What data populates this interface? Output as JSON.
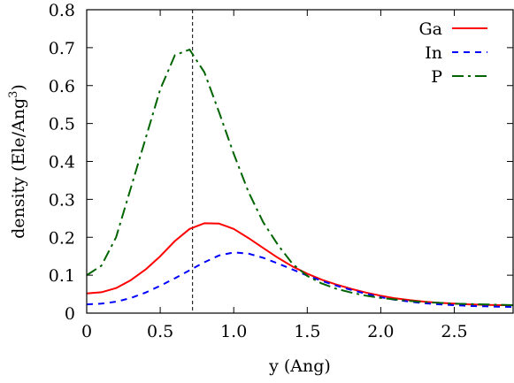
{
  "chart_data": {
    "type": "line",
    "xlabel": "y (Ang)",
    "ylabel_main": "density (Ele/Ang",
    "ylabel_sup": "3",
    "ylabel_close": ")",
    "xlim": [
      0,
      2.9
    ],
    "ylim": [
      0,
      0.8
    ],
    "xticks": [
      0,
      0.5,
      1.0,
      1.5,
      2.0,
      2.5
    ],
    "xtick_labels": [
      "0",
      "0.5",
      "1.0",
      "1.5",
      "2.0",
      "2.5"
    ],
    "yticks": [
      0,
      0.1,
      0.2,
      0.3,
      0.4,
      0.5,
      0.6,
      0.7,
      0.8
    ],
    "ytick_labels": [
      "0",
      "0.1",
      "0.2",
      "0.3",
      "0.4",
      "0.5",
      "0.6",
      "0.7",
      "0.8"
    ],
    "vline_x": 0.72,
    "legend_position": "top-right",
    "series": [
      {
        "name": "Ga",
        "color": "#ff0000",
        "dash": "solid",
        "x": [
          0,
          0.1,
          0.2,
          0.3,
          0.4,
          0.5,
          0.6,
          0.7,
          0.8,
          0.9,
          1.0,
          1.1,
          1.2,
          1.3,
          1.4,
          1.5,
          1.6,
          1.7,
          1.8,
          1.9,
          2.0,
          2.1,
          2.2,
          2.3,
          2.4,
          2.5,
          2.6,
          2.7,
          2.8,
          2.9
        ],
        "y": [
          0.052,
          0.055,
          0.066,
          0.087,
          0.115,
          0.15,
          0.19,
          0.222,
          0.237,
          0.236,
          0.222,
          0.198,
          0.172,
          0.146,
          0.123,
          0.104,
          0.088,
          0.075,
          0.064,
          0.054,
          0.046,
          0.039,
          0.034,
          0.03,
          0.027,
          0.025,
          0.023,
          0.022,
          0.021,
          0.021
        ]
      },
      {
        "name": "In",
        "color": "#0000ff",
        "dash": "dashed",
        "x": [
          0,
          0.1,
          0.2,
          0.3,
          0.4,
          0.5,
          0.6,
          0.7,
          0.8,
          0.9,
          1.0,
          1.1,
          1.2,
          1.3,
          1.4,
          1.5,
          1.6,
          1.7,
          1.8,
          1.9,
          2.0,
          2.1,
          2.2,
          2.3,
          2.4,
          2.5,
          2.6,
          2.7,
          2.8,
          2.9
        ],
        "y": [
          0.023,
          0.025,
          0.03,
          0.04,
          0.054,
          0.072,
          0.092,
          0.113,
          0.134,
          0.152,
          0.16,
          0.157,
          0.146,
          0.131,
          0.115,
          0.099,
          0.085,
          0.072,
          0.061,
          0.051,
          0.042,
          0.035,
          0.03,
          0.026,
          0.023,
          0.021,
          0.019,
          0.018,
          0.017,
          0.016
        ]
      },
      {
        "name": "P",
        "color": "#006400",
        "dash": "dashdot",
        "x": [
          0,
          0.1,
          0.2,
          0.3,
          0.4,
          0.5,
          0.6,
          0.7,
          0.8,
          0.9,
          1.0,
          1.1,
          1.2,
          1.3,
          1.4,
          1.5,
          1.6,
          1.7,
          1.8,
          1.9,
          2.0,
          2.1,
          2.2,
          2.3,
          2.4,
          2.5,
          2.6,
          2.7,
          2.8,
          2.9
        ],
        "y": [
          0.1,
          0.125,
          0.2,
          0.33,
          0.46,
          0.59,
          0.68,
          0.695,
          0.635,
          0.53,
          0.42,
          0.32,
          0.24,
          0.18,
          0.13,
          0.098,
          0.078,
          0.064,
          0.054,
          0.046,
          0.04,
          0.036,
          0.032,
          0.029,
          0.027,
          0.025,
          0.024,
          0.023,
          0.022,
          0.021
        ]
      }
    ]
  }
}
